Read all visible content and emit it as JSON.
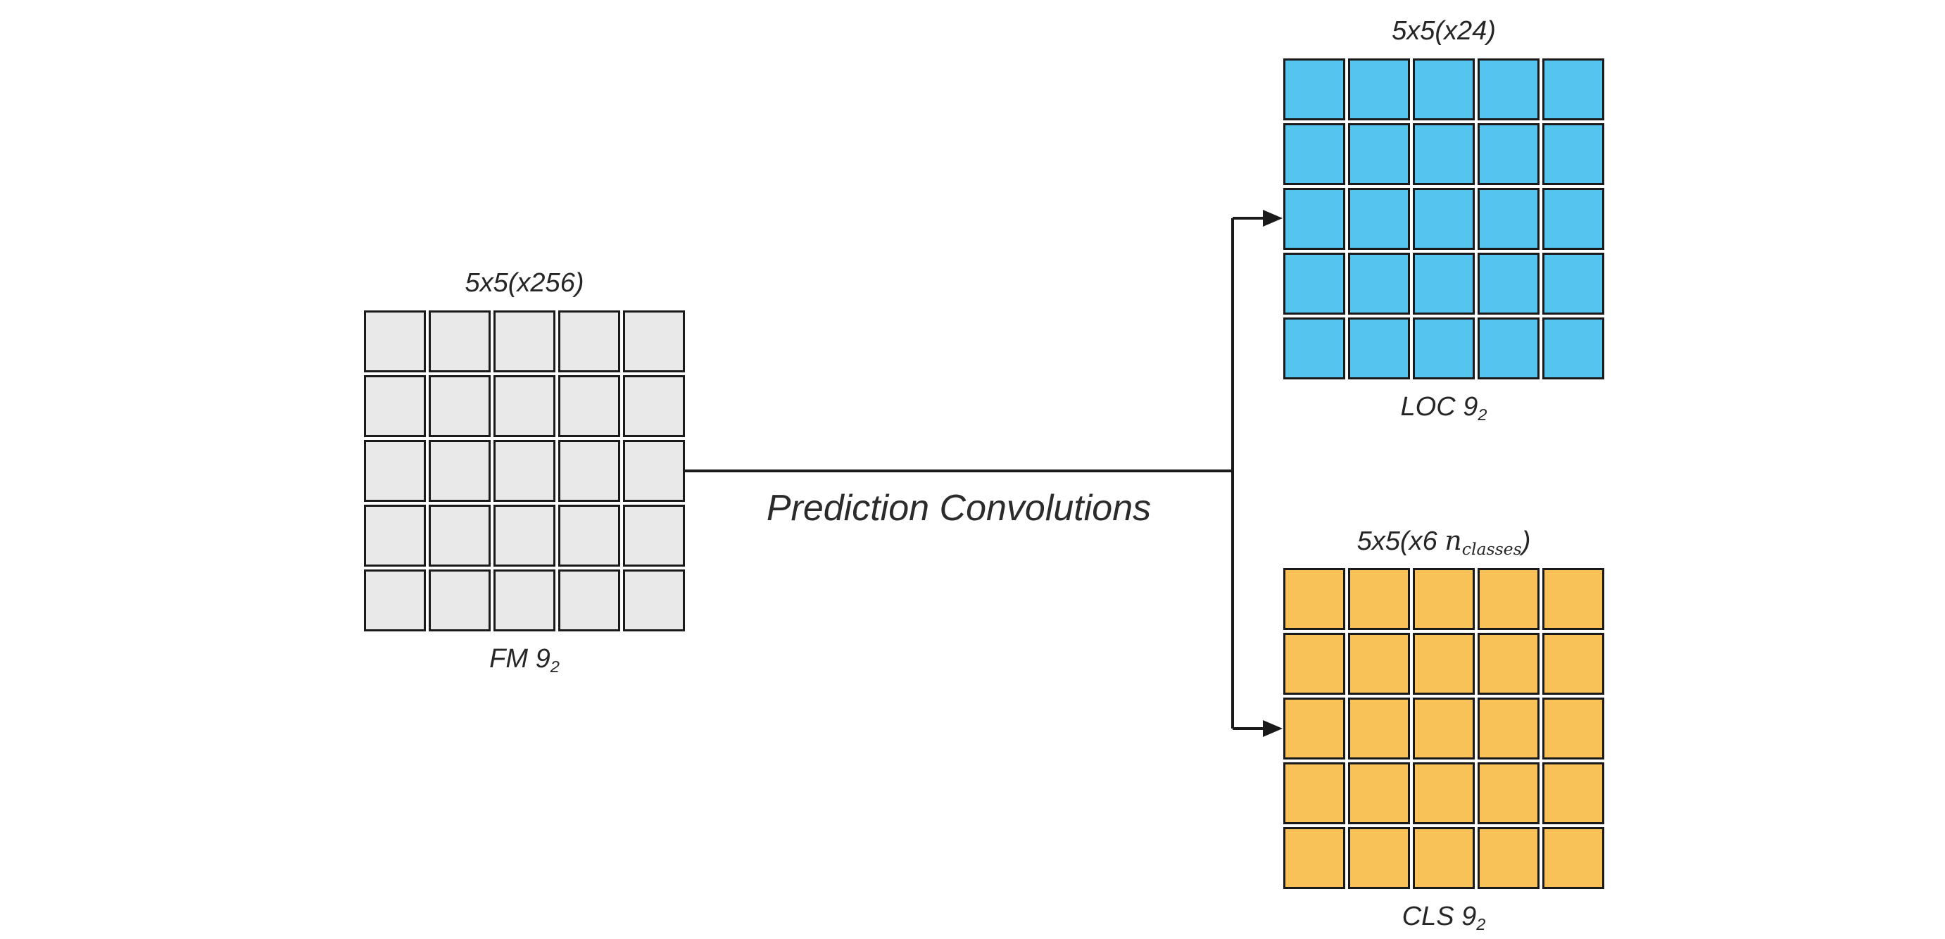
{
  "page": {
    "background": "#ffffff",
    "line_color": "#1a1a1a"
  },
  "center_label": "Prediction Convolutions",
  "blocks": {
    "fm": {
      "top_label": "5x5(x256)",
      "bottom_label": "FM 9",
      "bottom_sub": "2",
      "grid": {
        "rows": 5,
        "cols": 5,
        "color": "#e9e9e9",
        "border": "#1a1a1a"
      }
    },
    "loc": {
      "top_label": "5x5(x24)",
      "bottom_label": "LOC 9",
      "bottom_sub": "2",
      "grid": {
        "rows": 5,
        "cols": 5,
        "color": "#55c4ef",
        "border": "#1a1a1a"
      }
    },
    "cls": {
      "top_label_prefix": "5x5(x6 ",
      "top_label_var": "n",
      "top_label_sub": "classes",
      "top_label_suffix": ")",
      "bottom_label": "CLS 9",
      "bottom_sub": "2",
      "grid": {
        "rows": 5,
        "cols": 5,
        "color": "#f8c259",
        "border": "#1a1a1a"
      }
    }
  }
}
